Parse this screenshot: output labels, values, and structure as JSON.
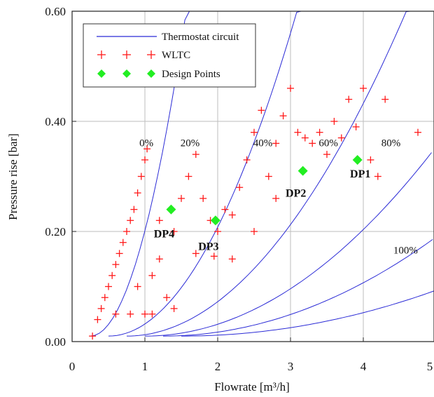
{
  "chart_data": {
    "type": "scatter",
    "xlabel": "Flowrate [m³/h]",
    "ylabel": "Pressure rise [bar]",
    "xlim": [
      0,
      5
    ],
    "ylim": [
      0,
      0.6
    ],
    "x_ticks": [
      "0",
      "1",
      "2",
      "3",
      "4",
      "5"
    ],
    "y_ticks": [
      "0.00",
      "0.20",
      "0.40",
      "0.60"
    ],
    "grid": true,
    "legend_position": "top-left",
    "legend": [
      {
        "label": "Thermostat circuit",
        "marker": "line",
        "color": "#2b2bd6"
      },
      {
        "label": "WLTC",
        "marker": "plus",
        "color": "#ff1a1a"
      },
      {
        "label": "Design Points",
        "marker": "diamond",
        "color": "#22ee22"
      }
    ],
    "opening_labels": [
      {
        "text": "0%",
        "x": 1.02,
        "y": 0.355
      },
      {
        "text": "20%",
        "x": 1.62,
        "y": 0.355
      },
      {
        "text": "40%",
        "x": 2.62,
        "y": 0.355
      },
      {
        "text": "60%",
        "x": 3.52,
        "y": 0.355
      },
      {
        "text": "80%",
        "x": 4.38,
        "y": 0.355
      },
      {
        "text": "100%",
        "x": 4.58,
        "y": 0.16
      }
    ],
    "thermostat_curves": [
      {
        "x0": 0.25,
        "k": 0.34
      },
      {
        "x0": 0.5,
        "k": 0.088
      },
      {
        "x0": 0.75,
        "k": 0.04
      },
      {
        "x0": 1.0,
        "k": 0.0215
      },
      {
        "x0": 1.25,
        "k": 0.0128
      },
      {
        "x0": 1.5,
        "k": 0.0068
      }
    ],
    "design_points": [
      {
        "name": "DP1",
        "x": 3.92,
        "y": 0.33
      },
      {
        "name": "DP2",
        "x": 3.17,
        "y": 0.31
      },
      {
        "name": "DP3",
        "x": 1.97,
        "y": 0.22
      },
      {
        "name": "DP4",
        "x": 1.36,
        "y": 0.24
      }
    ],
    "wltc_sample": [
      [
        0.28,
        0.01
      ],
      [
        0.35,
        0.04
      ],
      [
        0.4,
        0.06
      ],
      [
        0.45,
        0.08
      ],
      [
        0.5,
        0.1
      ],
      [
        0.55,
        0.12
      ],
      [
        0.6,
        0.14
      ],
      [
        0.65,
        0.16
      ],
      [
        0.7,
        0.18
      ],
      [
        0.75,
        0.2
      ],
      [
        0.8,
        0.22
      ],
      [
        0.85,
        0.24
      ],
      [
        0.9,
        0.27
      ],
      [
        0.95,
        0.3
      ],
      [
        1.0,
        0.33
      ],
      [
        1.03,
        0.35
      ],
      [
        0.6,
        0.05
      ],
      [
        0.8,
        0.05
      ],
      [
        1.0,
        0.05
      ],
      [
        1.1,
        0.05
      ],
      [
        0.9,
        0.1
      ],
      [
        1.1,
        0.12
      ],
      [
        1.2,
        0.15
      ],
      [
        1.3,
        0.08
      ],
      [
        1.4,
        0.06
      ],
      [
        1.2,
        0.22
      ],
      [
        1.4,
        0.2
      ],
      [
        1.5,
        0.26
      ],
      [
        1.6,
        0.3
      ],
      [
        1.7,
        0.34
      ],
      [
        1.8,
        0.26
      ],
      [
        1.9,
        0.22
      ],
      [
        2.0,
        0.2
      ],
      [
        2.1,
        0.24
      ],
      [
        2.2,
        0.23
      ],
      [
        2.3,
        0.28
      ],
      [
        2.4,
        0.33
      ],
      [
        2.5,
        0.38
      ],
      [
        2.6,
        0.42
      ],
      [
        2.7,
        0.3
      ],
      [
        2.8,
        0.36
      ],
      [
        2.9,
        0.41
      ],
      [
        3.0,
        0.46
      ],
      [
        3.1,
        0.38
      ],
      [
        3.2,
        0.37
      ],
      [
        3.3,
        0.36
      ],
      [
        3.4,
        0.38
      ],
      [
        3.5,
        0.34
      ],
      [
        3.6,
        0.4
      ],
      [
        3.7,
        0.37
      ],
      [
        3.8,
        0.44
      ],
      [
        3.9,
        0.39
      ],
      [
        4.0,
        0.46
      ],
      [
        4.1,
        0.33
      ],
      [
        4.2,
        0.3
      ],
      [
        4.3,
        0.44
      ],
      [
        4.75,
        0.38
      ],
      [
        2.2,
        0.15
      ],
      [
        2.5,
        0.2
      ],
      [
        2.8,
        0.26
      ],
      [
        1.7,
        0.16
      ],
      [
        1.95,
        0.155
      ]
    ]
  }
}
